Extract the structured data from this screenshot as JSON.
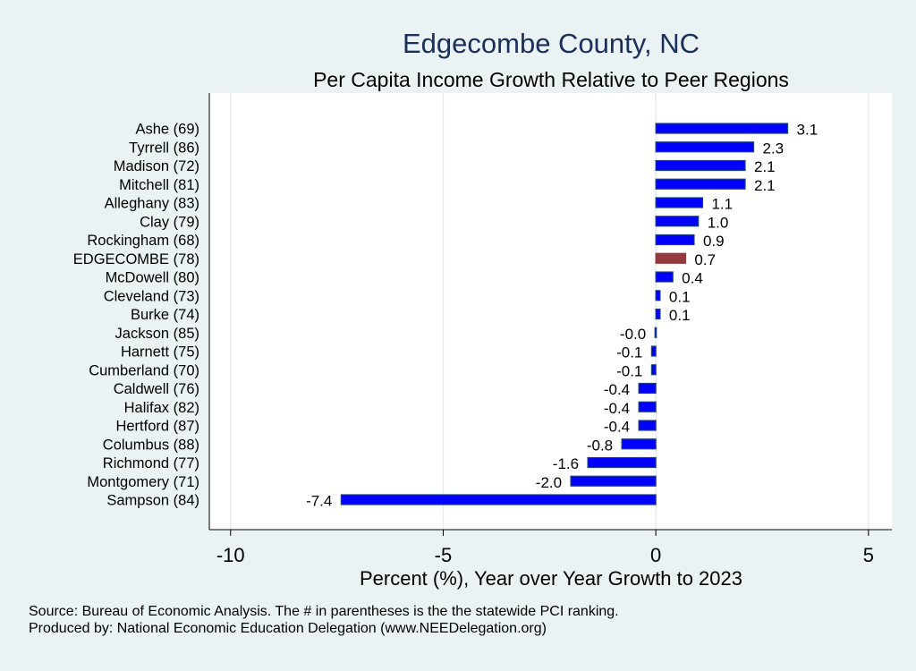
{
  "chart_data": {
    "type": "bar",
    "orientation": "horizontal",
    "title": "Edgecombe County, NC",
    "subtitle": "Per Capita Income Growth Relative to Peer Regions",
    "xlabel": "Percent (%), Year over Year Growth to 2023",
    "ylabel": "",
    "xlim": [
      -10.5,
      5.55
    ],
    "xticks": [
      -10,
      -5,
      0,
      5
    ],
    "grid": true,
    "categories": [
      "Ashe (69)",
      "Tyrrell (86)",
      "Madison (72)",
      "Mitchell (81)",
      "Alleghany (83)",
      "Clay (79)",
      "Rockingham (68)",
      "EDGECOMBE (78)",
      "McDowell (80)",
      "Cleveland (73)",
      "Burke (74)",
      "Jackson (85)",
      "Harnett (75)",
      "Cumberland (70)",
      "Caldwell (76)",
      "Halifax (82)",
      "Hertford (87)",
      "Columbus (88)",
      "Richmond (77)",
      "Montgomery (71)",
      "Sampson (84)"
    ],
    "values": [
      3.1,
      2.3,
      2.1,
      2.1,
      1.1,
      1.0,
      0.9,
      0.7,
      0.4,
      0.1,
      0.1,
      -0.02,
      -0.1,
      -0.1,
      -0.4,
      -0.4,
      -0.4,
      -0.8,
      -1.6,
      -2.0,
      -7.4
    ],
    "labels": [
      "3.1",
      "2.3",
      "2.1",
      "2.1",
      "1.1",
      "1.0",
      "0.9",
      "0.7",
      "0.4",
      "0.1",
      "0.1",
      "-0.0",
      "-0.1",
      "-0.1",
      "-0.4",
      "-0.4",
      "-0.4",
      "-0.8",
      "-1.6",
      "-2.0",
      "-7.4"
    ],
    "highlight": "EDGECOMBE (78)",
    "colors": {
      "bar": "#0000ff",
      "bar_outline": "#1a3f7a",
      "highlight": "#943a3d",
      "background": "#eaf2f3",
      "plot": "#ffffff",
      "grid": "#e3edef",
      "title": "#1a2f5a"
    }
  },
  "footer": {
    "source": "Source: Bureau of Economic Analysis. The # in parentheses is the the statewide PCI ranking.",
    "produced": "Produced by: National Economic Education Delegation (www.NEEDelegation.org)"
  }
}
